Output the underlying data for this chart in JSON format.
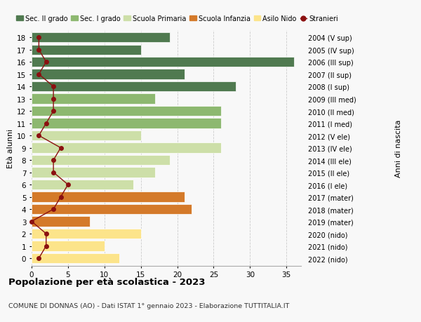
{
  "ages": [
    0,
    1,
    2,
    3,
    4,
    5,
    6,
    7,
    8,
    9,
    10,
    11,
    12,
    13,
    14,
    15,
    16,
    17,
    18
  ],
  "right_labels": [
    "2022 (nido)",
    "2021 (nido)",
    "2020 (nido)",
    "2019 (mater)",
    "2018 (mater)",
    "2017 (mater)",
    "2016 (I ele)",
    "2015 (II ele)",
    "2014 (III ele)",
    "2013 (IV ele)",
    "2012 (V ele)",
    "2011 (I med)",
    "2010 (II med)",
    "2009 (III med)",
    "2008 (I sup)",
    "2007 (II sup)",
    "2006 (III sup)",
    "2005 (IV sup)",
    "2004 (V sup)"
  ],
  "bar_values": [
    12,
    10,
    15,
    8,
    22,
    21,
    14,
    17,
    19,
    26,
    15,
    26,
    26,
    17,
    28,
    21,
    36,
    15,
    19
  ],
  "bar_colors": [
    "#fce48a",
    "#fce48a",
    "#fce48a",
    "#d47a2a",
    "#d47a2a",
    "#d47a2a",
    "#cddfa8",
    "#cddfa8",
    "#cddfa8",
    "#cddfa8",
    "#cddfa8",
    "#8db870",
    "#8db870",
    "#8db870",
    "#507a50",
    "#507a50",
    "#507a50",
    "#507a50",
    "#507a50"
  ],
  "stranieri": [
    1,
    2,
    2,
    0,
    3,
    4,
    5,
    3,
    3,
    4,
    1,
    2,
    3,
    3,
    3,
    1,
    2,
    1,
    1
  ],
  "stranieri_color": "#8b1010",
  "legend_labels": [
    "Sec. II grado",
    "Sec. I grado",
    "Scuola Primaria",
    "Scuola Infanzia",
    "Asilo Nido",
    "Stranieri"
  ],
  "legend_colors": [
    "#507a50",
    "#8db870",
    "#cddfa8",
    "#d47a2a",
    "#fce48a",
    "#8b1010"
  ],
  "title": "Popolazione per età scolastica - 2023",
  "subtitle": "COMUNE DI DONNAS (AO) - Dati ISTAT 1° gennaio 2023 - Elaborazione TUTTITALIA.IT",
  "ylabel_left": "Età alunni",
  "ylabel_right": "Anni di nascita",
  "xlim": [
    0,
    37
  ],
  "bg_color": "#f8f8f8",
  "grid_color": "#cccccc"
}
